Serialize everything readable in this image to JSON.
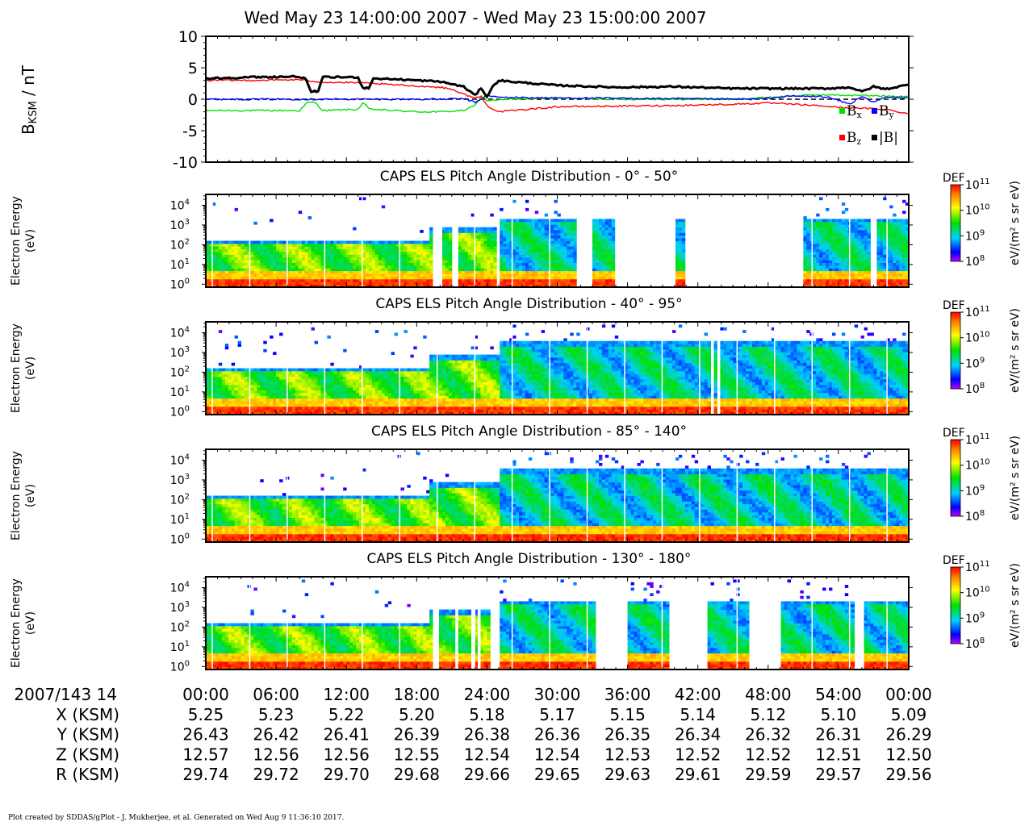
{
  "title": "Wed May 23 14:00:00 2007 - Wed May 23 15:00:00 2007",
  "footer": "Plot created by SDDAS/gPlot - J. Mukherjee, et al.  Generated on Wed Aug 9 11:36:10 2017.",
  "chart_data": [
    {
      "type": "line",
      "panel": "magnetic-field",
      "ylabel_main": "B",
      "ylabel_sub": "KSM",
      "ylabel_unit": " / nT",
      "ylim": [
        -10,
        10
      ],
      "yticks": [
        10,
        5,
        0,
        -5,
        -10
      ],
      "xlim_minutes": [
        0,
        60
      ],
      "legend": [
        {
          "label": "B",
          "sub": "x",
          "color": "#00e000"
        },
        {
          "label": "B",
          "sub": "y",
          "color": "#0000ff"
        },
        {
          "label": "B",
          "sub": "z",
          "color": "#ff0000"
        },
        {
          "label": "|B|",
          "sub": "",
          "color": "#000000"
        }
      ],
      "series": [
        {
          "name": "Bx",
          "color": "#00e000",
          "x": [
            0,
            4,
            8,
            8.7,
            9.3,
            10,
            13,
            13.4,
            14,
            18,
            20,
            22,
            23,
            23.5,
            24,
            26,
            30,
            35,
            40,
            45,
            48,
            52,
            56,
            58,
            60
          ],
          "y": [
            -1.8,
            -1.8,
            -1.8,
            -0.5,
            -0.5,
            -1.8,
            -1.6,
            -0.6,
            -1.6,
            -2.0,
            -2.0,
            -1.8,
            -1.0,
            0.5,
            -0.2,
            0.0,
            0.2,
            0.0,
            0.0,
            0.0,
            0.3,
            0.7,
            0.6,
            0.5,
            0.5
          ]
        },
        {
          "name": "By",
          "color": "#0000ff",
          "x": [
            0,
            10,
            20,
            22,
            23,
            24,
            25,
            30,
            40,
            45,
            47,
            50,
            53,
            55,
            56,
            57,
            58,
            60
          ],
          "y": [
            0,
            0,
            0,
            0.1,
            -0.5,
            0.6,
            0.3,
            0.2,
            0.1,
            0.0,
            0.0,
            0.5,
            0.4,
            -0.8,
            0.5,
            -0.5,
            0.3,
            0.2
          ]
        },
        {
          "name": "Bz",
          "color": "#ff0000",
          "x": [
            0,
            4,
            8,
            10,
            13,
            16,
            20,
            21,
            22,
            23,
            23.5,
            24,
            25,
            30,
            40,
            45,
            48,
            50,
            52,
            55,
            57,
            58,
            60
          ],
          "y": [
            3.0,
            3.0,
            3.1,
            2.7,
            2.6,
            2.3,
            1.9,
            1.6,
            0.8,
            0.2,
            0.4,
            -1.0,
            -2.0,
            -1.2,
            -1.0,
            -0.8,
            -0.6,
            -0.8,
            -1.0,
            -1.4,
            -1.5,
            -1.6,
            -2.3
          ]
        },
        {
          "name": "|B|",
          "color": "#000000",
          "x": [
            0,
            4,
            8,
            8.5,
            9,
            9.6,
            10,
            13,
            13.4,
            13.9,
            14.3,
            16,
            20,
            22,
            23,
            23.5,
            24,
            24.5,
            25,
            26,
            28,
            30,
            35,
            40,
            45,
            50,
            53,
            55,
            56,
            57,
            58,
            60
          ],
          "y": [
            3.3,
            3.5,
            3.6,
            3.2,
            1.2,
            1.3,
            3.5,
            3.5,
            1.8,
            1.8,
            3.3,
            3.2,
            2.8,
            2.0,
            0.6,
            1.8,
            0.4,
            2.0,
            3.0,
            2.8,
            2.5,
            2.2,
            1.9,
            2.0,
            1.7,
            1.7,
            1.7,
            1.9,
            1.2,
            2.0,
            1.6,
            2.3
          ]
        }
      ]
    },
    {
      "type": "heatmap",
      "panel": "pad-1",
      "title": "CAPS ELS Pitch Angle Distribution - 0° - 50°",
      "ylabel": "Electron Energy",
      "yunit": "(eV)",
      "colorbar_label": "DEF",
      "colorbar_unit": "eV/(m² s sr eV)",
      "colorbar_range_log10": [
        8,
        11
      ],
      "gaps_minutes": [
        [
          19.5,
          20.3
        ],
        [
          21.1,
          21.5
        ],
        [
          24.8,
          25.0
        ],
        [
          30.2,
          30.4
        ],
        [
          31.0,
          31.2
        ],
        [
          31.7,
          33.0
        ],
        [
          35.0,
          40.0
        ],
        [
          41.0,
          51.0
        ],
        [
          56.8,
          57.2
        ]
      ],
      "partial_gaps_minutes": [
        [
          33.0,
          35.0,
          3.3
        ],
        [
          40.0,
          41.0,
          3.3
        ]
      ]
    },
    {
      "type": "heatmap",
      "panel": "pad-2",
      "title": "CAPS ELS Pitch Angle Distribution - 40° - 95°",
      "ylabel": "Electron Energy",
      "yunit": "(eV)",
      "colorbar_label": "DEF",
      "colorbar_unit": "eV/(m² s sr eV)",
      "colorbar_range_log10": [
        8,
        11
      ],
      "gaps_minutes": [
        [
          43.0,
          43.4
        ],
        [
          43.6,
          43.9
        ]
      ],
      "partial_gaps_minutes": []
    },
    {
      "type": "heatmap",
      "panel": "pad-3",
      "title": "CAPS ELS Pitch Angle Distribution - 85° - 140°",
      "ylabel": "Electron Energy",
      "yunit": "(eV)",
      "colorbar_label": "DEF",
      "colorbar_unit": "eV/(m² s sr eV)",
      "colorbar_range_log10": [
        8,
        11
      ],
      "gaps_minutes": [],
      "partial_gaps_minutes": []
    },
    {
      "type": "heatmap",
      "panel": "pad-4",
      "title": "CAPS ELS Pitch Angle Distribution - 130° - 180°",
      "ylabel": "Electron Energy",
      "yunit": "(eV)",
      "colorbar_label": "DEF",
      "colorbar_unit": "eV/(m² s sr eV)",
      "colorbar_range_log10": [
        8,
        11
      ],
      "gaps_minutes": [
        [
          19.5,
          20.0
        ],
        [
          21.3,
          21.6
        ],
        [
          22.6,
          22.9
        ],
        [
          23.3,
          23.5
        ],
        [
          24.4,
          25.0
        ],
        [
          33.2,
          36.0
        ],
        [
          39.6,
          42.8
        ],
        [
          46.3,
          49.0
        ],
        [
          55.5,
          56.2
        ]
      ],
      "partial_gaps_minutes": []
    }
  ],
  "ephemeris": {
    "time_label": "2007/143 14",
    "ticks": [
      "00:00",
      "06:00",
      "12:00",
      "18:00",
      "24:00",
      "30:00",
      "36:00",
      "42:00",
      "48:00",
      "54:00",
      "00:00"
    ],
    "rows": [
      {
        "label": "X (KSM)",
        "values": [
          "5.25",
          "5.23",
          "5.22",
          "5.20",
          "5.18",
          "5.17",
          "5.15",
          "5.14",
          "5.12",
          "5.10",
          "5.09"
        ]
      },
      {
        "label": "Y (KSM)",
        "values": [
          "26.43",
          "26.42",
          "26.41",
          "26.39",
          "26.38",
          "26.36",
          "26.35",
          "26.34",
          "26.32",
          "26.31",
          "26.29"
        ]
      },
      {
        "label": "Z (KSM)",
        "values": [
          "12.57",
          "12.56",
          "12.56",
          "12.55",
          "12.54",
          "12.54",
          "12.53",
          "12.52",
          "12.52",
          "12.51",
          "12.50"
        ]
      },
      {
        "label": "R (KSM)",
        "values": [
          "29.74",
          "29.72",
          "29.70",
          "29.68",
          "29.66",
          "29.65",
          "29.63",
          "29.61",
          "29.59",
          "29.57",
          "29.56"
        ]
      }
    ]
  }
}
